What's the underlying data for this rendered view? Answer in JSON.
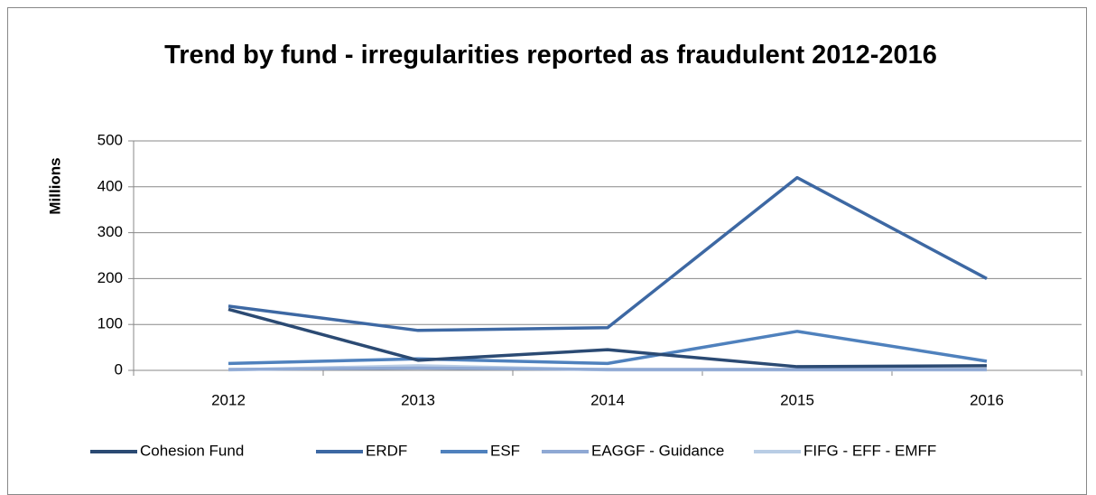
{
  "chart_data": {
    "type": "line",
    "title": "Trend by fund - irregularities reported as fraudulent 2012-2016",
    "y_label": "Millions",
    "categories": [
      "2012",
      "2013",
      "2014",
      "2015",
      "2016"
    ],
    "series": [
      {
        "name": "Cohesion Fund",
        "color": "#2b4a73",
        "values": [
          133,
          22,
          45,
          8,
          10
        ]
      },
      {
        "name": "ERDF",
        "color": "#3d68a3",
        "values": [
          140,
          87,
          93,
          420,
          200
        ]
      },
      {
        "name": "ESF",
        "color": "#4f81bd",
        "values": [
          15,
          25,
          15,
          85,
          20
        ]
      },
      {
        "name": "EAGGF - Guidance",
        "color": "#8fa9d4",
        "values": [
          2,
          5,
          2,
          2,
          2
        ]
      },
      {
        "name": "FIFG - EFF - EMFF",
        "color": "#b9cde5",
        "values": [
          1,
          10,
          1,
          1,
          1
        ]
      }
    ],
    "ylim": [
      0,
      500
    ],
    "yticks": [
      0,
      100,
      200,
      300,
      400,
      500
    ],
    "grid": true,
    "legend": "bottom"
  }
}
